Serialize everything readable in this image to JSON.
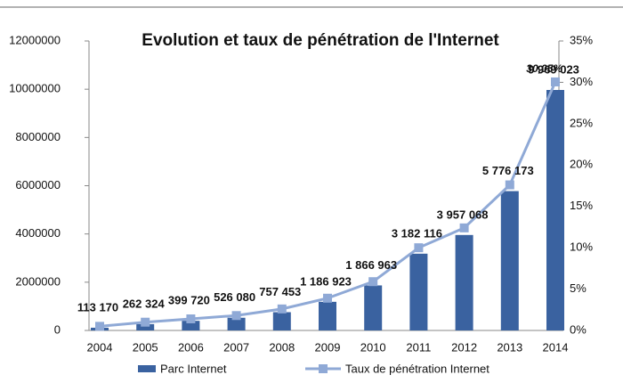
{
  "chart_data": {
    "type": "bar-line",
    "title": "Evolution  et taux de pénétration de l'Internet",
    "categories": [
      "2004",
      "2005",
      "2006",
      "2007",
      "2008",
      "2009",
      "2010",
      "2011",
      "2012",
      "2013",
      "2014"
    ],
    "series": [
      {
        "name": "Parc Internet",
        "color": "#3a62a0",
        "type": "bar",
        "values": [
          113170,
          262324,
          399720,
          526080,
          757453,
          1186923,
          1866963,
          3182116,
          3957068,
          5776173,
          9969023
        ],
        "value_labels": [
          "113 170",
          "262 324",
          "399 720",
          "526 080",
          "757 453",
          "1 186 923",
          "1 866 963",
          "3 182 116",
          "3 957 068",
          "5 776 173",
          "9 969 023"
        ]
      },
      {
        "name": "Taux de pénétration Internet",
        "color": "#8fa9d6",
        "type": "line",
        "axis": "y2",
        "values": [
          0.5,
          1,
          1.4,
          1.8,
          2.6,
          3.9,
          5.9,
          10,
          12.4,
          17.6,
          30.05
        ],
        "value_labels": [
          null,
          null,
          null,
          null,
          null,
          null,
          null,
          null,
          null,
          null,
          "30,05%"
        ]
      }
    ],
    "ylim": [
      0,
      12000000
    ],
    "yticks": [
      0,
      2000000,
      4000000,
      6000000,
      8000000,
      10000000,
      12000000
    ],
    "y2lim": [
      0,
      35
    ],
    "y2ticks": [
      {
        "value": 0,
        "label": "0%"
      },
      {
        "value": 5,
        "label": "5%"
      },
      {
        "value": 10,
        "label": "10%"
      },
      {
        "value": 15,
        "label": "15%"
      },
      {
        "value": 20,
        "label": "20%"
      },
      {
        "value": 25,
        "label": "25%"
      },
      {
        "value": 30,
        "label": "30%"
      },
      {
        "value": 35,
        "label": "35%"
      }
    ],
    "legend": "bottom"
  }
}
